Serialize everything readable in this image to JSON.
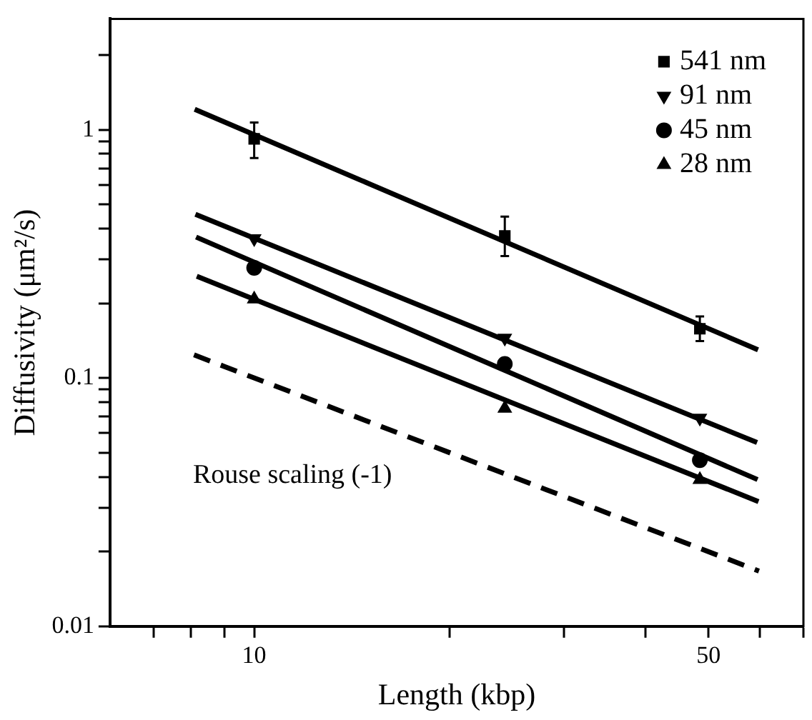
{
  "chart_data": {
    "type": "scatter",
    "xlabel": "Length (kbp)",
    "ylabel": "Diffusivity (μm²/s)",
    "log": "xy",
    "grid": false,
    "legend": "top right",
    "xlim": [
      6,
      70
    ],
    "xticks": [
      {
        "value": 7,
        "label": null
      },
      {
        "value": 8,
        "label": null
      },
      {
        "value": 9,
        "label": null
      },
      10,
      {
        "value": 20,
        "label": null
      },
      {
        "value": 30,
        "label": null
      },
      {
        "value": 40,
        "label": null
      },
      50,
      {
        "value": 60,
        "label": null
      },
      {
        "value": 70,
        "label": null
      }
    ],
    "ylim": [
      0.01,
      2.8
    ],
    "yticks": [
      0.01,
      {
        "value": 0.02,
        "label": null
      },
      {
        "value": 0.03,
        "label": null
      },
      {
        "value": 0.04,
        "label": null
      },
      {
        "value": 0.05,
        "label": null
      },
      {
        "value": 0.06,
        "label": null
      },
      {
        "value": 0.07,
        "label": null
      },
      {
        "value": 0.08,
        "label": null
      },
      {
        "value": 0.09,
        "label": null
      },
      0.1,
      {
        "value": 0.2,
        "label": null
      },
      {
        "value": 0.3,
        "label": null
      },
      {
        "value": 0.4,
        "label": null
      },
      {
        "value": 0.5,
        "label": null
      },
      {
        "value": 0.6,
        "label": null
      },
      {
        "value": 0.7,
        "label": null
      },
      {
        "value": 0.8,
        "label": null
      },
      {
        "value": 0.9,
        "label": null
      },
      1,
      {
        "value": 2,
        "label": null
      }
    ],
    "x": [
      10,
      24.3,
      48.5
    ],
    "series": [
      {
        "name": "541 nm",
        "color": "#000000",
        "marker": "square",
        "values": [
          0.92,
          0.374,
          0.158
        ],
        "errors": [
          [
            0.77,
            1.07
          ],
          [
            0.31,
            0.447
          ],
          [
            0.141,
            0.177
          ]
        ]
      },
      {
        "name": "91 nm",
        "color": "#000000",
        "marker": "triangle_down",
        "values": [
          0.365,
          0.145,
          0.069
        ]
      },
      {
        "name": "45 nm",
        "color": "#000000",
        "marker": "circle",
        "values": [
          0.278,
          0.114,
          0.0467
        ]
      },
      {
        "name": "28 nm",
        "color": "#000000",
        "marker": "triangle",
        "values": [
          0.208,
          0.0755,
          0.039
        ]
      },
      {
        "type": "line",
        "color": "#000000",
        "marker": "none",
        "line_style": "solid",
        "x": [
          8.1,
          59.6
        ],
        "values": [
          1.21,
          0.13
        ]
      },
      {
        "type": "line",
        "color": "#000000",
        "marker": "none",
        "line_style": "solid",
        "x": [
          8.12,
          59.4
        ],
        "values": [
          0.457,
          0.055
        ]
      },
      {
        "type": "line",
        "color": "#000000",
        "marker": "none",
        "line_style": "solid",
        "x": [
          8.14,
          59.5
        ],
        "values": [
          0.37,
          0.039
        ]
      },
      {
        "type": "line",
        "color": "#000000",
        "marker": "none",
        "line_style": "solid",
        "x": [
          8.16,
          59.7
        ],
        "values": [
          0.257,
          0.0318
        ]
      },
      {
        "type": "line",
        "color": "#000000",
        "marker": "none",
        "line_style": "dashed",
        "x": [
          8.08,
          59.8
        ],
        "values": [
          0.124,
          0.0167
        ]
      }
    ],
    "annotations": [
      "Rouse scaling (-1)"
    ]
  }
}
